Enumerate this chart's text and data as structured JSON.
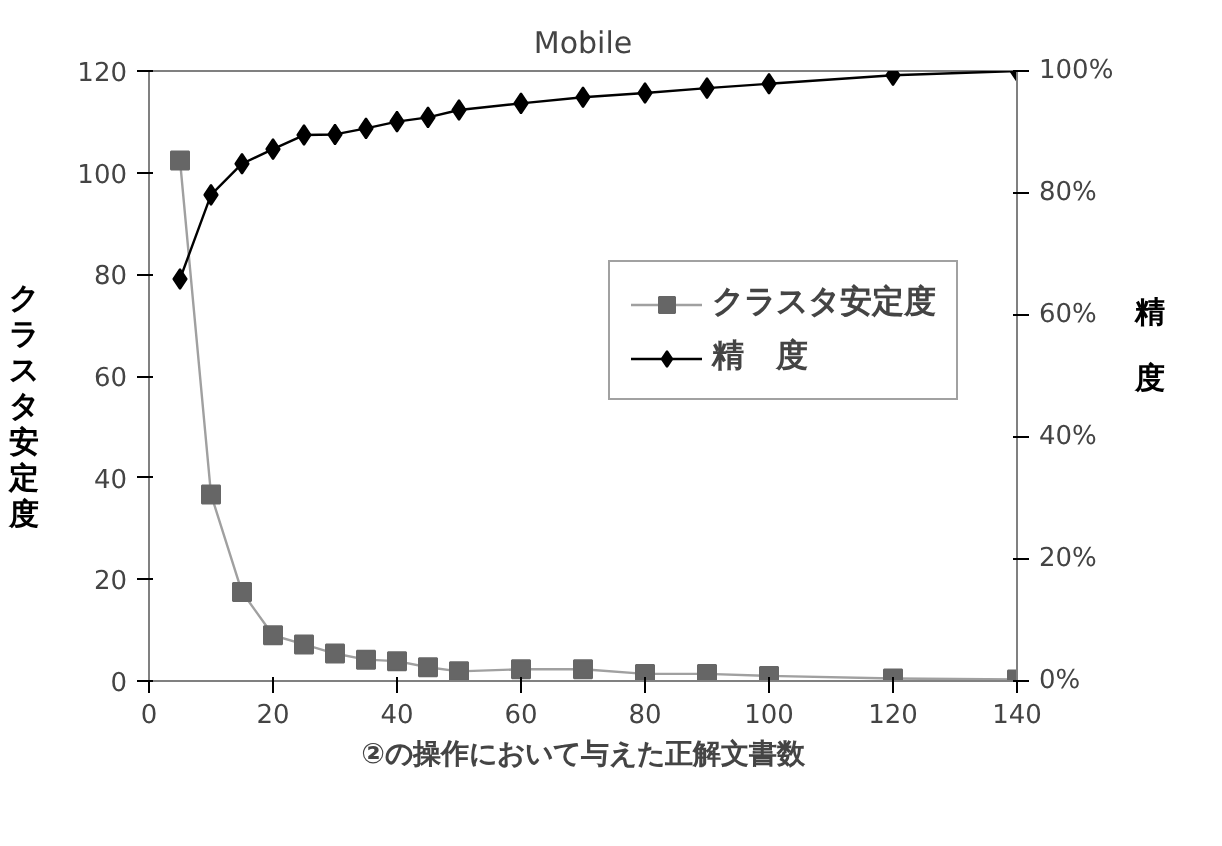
{
  "chart_data": {
    "type": "line",
    "title": "Mobile",
    "xlabel": "②の操作において与えた正解文書数",
    "ylabel": "クラスタ安定度",
    "y2label": "精度",
    "x": [
      5,
      10,
      15,
      20,
      25,
      30,
      35,
      40,
      45,
      50,
      60,
      70,
      80,
      90,
      100,
      120,
      140
    ],
    "series": [
      {
        "name": "クラスタ安定度",
        "color": "#666666",
        "marker": "square",
        "values": [
          102.4,
          36.7,
          17.5,
          9.0,
          7.2,
          5.4,
          4.2,
          3.9,
          2.7,
          1.9,
          2.3,
          2.3,
          1.4,
          1.4,
          1.0,
          0.5,
          0.3
        ]
      },
      {
        "name": "精　度",
        "color": "#000000",
        "marker": "diamond",
        "axis": "y2",
        "values": [
          65.9,
          79.7,
          84.8,
          87.2,
          89.5,
          89.6,
          90.6,
          91.7,
          92.4,
          93.6,
          94.7,
          95.7,
          96.4,
          97.2,
          97.9,
          99.3,
          100
        ]
      }
    ],
    "xlim": [
      0,
      140
    ],
    "xticks": [
      0,
      20,
      40,
      60,
      80,
      100,
      120,
      140
    ],
    "ylim": [
      0,
      120
    ],
    "yticks": [
      0,
      20,
      40,
      60,
      80,
      100,
      120
    ],
    "y2lim": [
      0,
      100
    ],
    "y2ticks": [
      {
        "value": 0,
        "label": "0%"
      },
      {
        "value": 20,
        "label": "20%"
      },
      {
        "value": 40,
        "label": "40%"
      },
      {
        "value": 60,
        "label": "60%"
      },
      {
        "value": 80,
        "label": "80%"
      },
      {
        "value": 100,
        "label": "100%"
      }
    ],
    "grid": false,
    "legend": "right"
  }
}
